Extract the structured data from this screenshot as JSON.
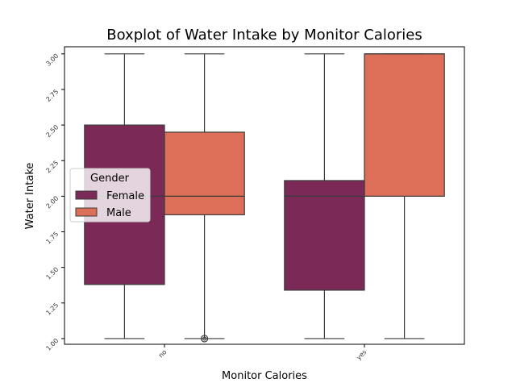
{
  "chart_data": {
    "type": "boxplot",
    "title": "Boxplot of Water Intake by Monitor Calories",
    "xlabel": "Monitor Calories",
    "ylabel": "Water Intake",
    "categories": [
      "no",
      "yes"
    ],
    "ylim": [
      0.96,
      3.05
    ],
    "yticks": [
      1.0,
      1.25,
      1.5,
      1.75,
      2.0,
      2.25,
      2.5,
      2.75,
      3.0
    ],
    "ytick_labels": [
      "1.00",
      "1.25",
      "1.50",
      "1.75",
      "2.00",
      "2.25",
      "2.50",
      "2.75",
      "3.00"
    ],
    "legend": {
      "title": "Gender",
      "placement": "center-left"
    },
    "series": [
      {
        "name": "Female",
        "color": "#7b2a58",
        "boxes": [
          {
            "category": "no",
            "whisker_low": 1.0,
            "q1": 1.38,
            "median": 2.0,
            "q3": 2.5,
            "whisker_high": 3.0,
            "outliers": []
          },
          {
            "category": "yes",
            "whisker_low": 1.0,
            "q1": 1.34,
            "median": 2.0,
            "q3": 2.11,
            "whisker_high": 3.0,
            "outliers": []
          }
        ]
      },
      {
        "name": "Male",
        "color": "#dd6f58",
        "boxes": [
          {
            "category": "no",
            "whisker_low": 1.0,
            "q1": 1.87,
            "median": 2.0,
            "q3": 2.45,
            "whisker_high": 3.0,
            "outliers": [
              1.0
            ]
          },
          {
            "category": "yes",
            "whisker_low": 1.0,
            "q1": 2.0,
            "median": 3.0,
            "q3": 3.0,
            "whisker_high": 3.0,
            "outliers": []
          }
        ]
      }
    ]
  }
}
